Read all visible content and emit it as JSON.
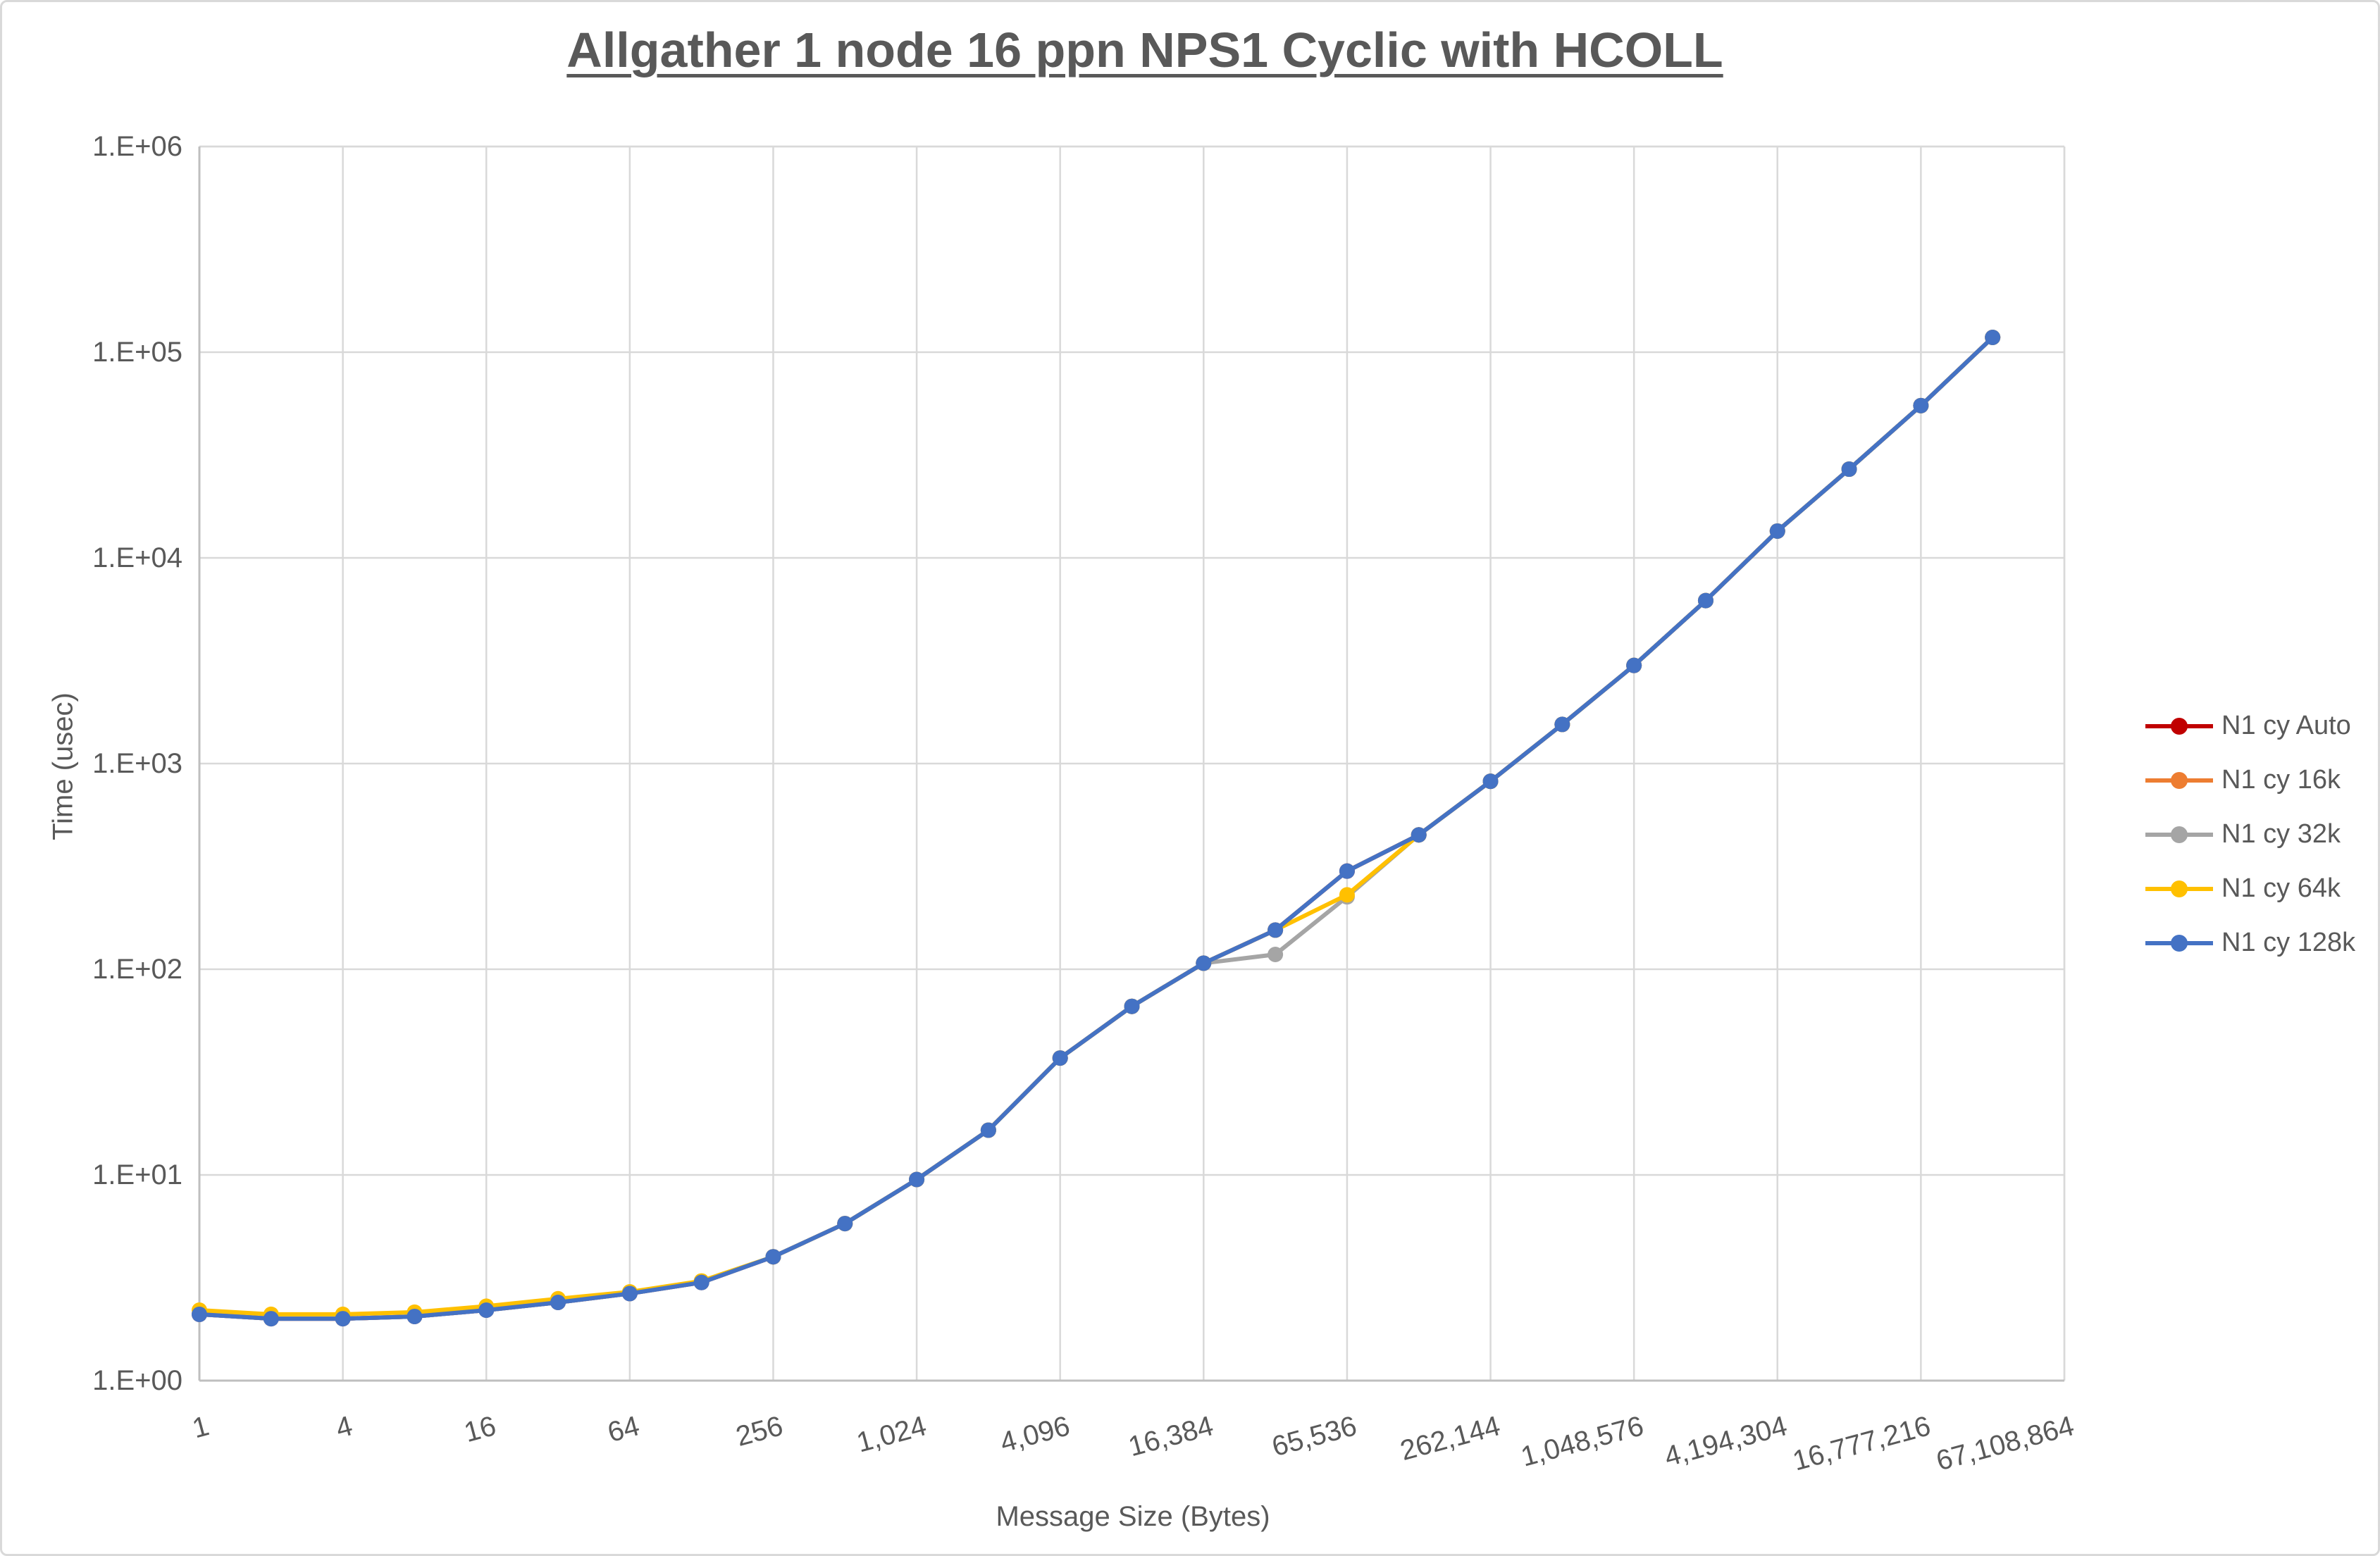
{
  "chart_data": {
    "type": "line",
    "title": "Allgather 1 node 16 ppn NPS1 Cyclic with HCOLL",
    "xlabel": "Message Size (Bytes)",
    "ylabel": "Time (usec)",
    "x_scale": "log2-categories",
    "y_scale": "log10",
    "ylim": [
      1,
      1000000
    ],
    "y_tick_labels": [
      "1.E+00",
      "1.E+01",
      "1.E+02",
      "1.E+03",
      "1.E+04",
      "1.E+05",
      "1.E+06"
    ],
    "x_tick_labels": [
      "1",
      "4",
      "16",
      "64",
      "256",
      "1,024",
      "4,096",
      "16,384",
      "65,536",
      "262,144",
      "1,048,576",
      "4,194,304",
      "16,777,216",
      "67,108,864"
    ],
    "x_sizes": [
      1,
      2,
      4,
      8,
      16,
      32,
      64,
      128,
      256,
      512,
      1024,
      2048,
      4096,
      8192,
      16384,
      32768,
      65536,
      131072,
      262144,
      524288,
      1048576,
      2097152,
      4194304,
      8388608,
      16777216,
      33554432
    ],
    "grid": true,
    "legend_position": "right",
    "colors": {
      "grid": "#D9D9D9",
      "axis": "#BFBFBF",
      "text": "#595959",
      "title": "#595959"
    },
    "series": [
      {
        "name": "N1 cy Auto",
        "color": "#C00000",
        "values": [
          2.1,
          2.0,
          2.0,
          2.05,
          2.2,
          2.4,
          2.65,
          3.0,
          4.0,
          5.8,
          9.5,
          16.5,
          37,
          66,
          107,
          155,
          300,
          450,
          820,
          1550,
          3000,
          6200,
          13500,
          27000,
          55000,
          118000
        ]
      },
      {
        "name": "N1 cy 16k",
        "color": "#ED7D31",
        "values": [
          2.1,
          2.0,
          2.0,
          2.05,
          2.2,
          2.4,
          2.65,
          3.0,
          4.0,
          5.8,
          9.5,
          16.5,
          37,
          66,
          107,
          155,
          300,
          450,
          820,
          1550,
          3000,
          6200,
          13500,
          27000,
          55000,
          118000
        ]
      },
      {
        "name": "N1 cy 32k",
        "color": "#A5A5A5",
        "values": [
          2.1,
          2.0,
          2.0,
          2.05,
          2.2,
          2.4,
          2.65,
          3.0,
          4.0,
          5.8,
          9.5,
          16.5,
          37,
          66,
          107,
          118,
          225,
          450,
          820,
          1550,
          3000,
          6200,
          13500,
          27000,
          55000,
          118000
        ]
      },
      {
        "name": "N1 cy 64k",
        "color": "#FFC000",
        "values": [
          2.2,
          2.1,
          2.1,
          2.15,
          2.3,
          2.5,
          2.7,
          3.05,
          4.0,
          5.8,
          9.5,
          16.5,
          37,
          66,
          107,
          155,
          230,
          450,
          820,
          1550,
          3000,
          6200,
          13500,
          27000,
          55000,
          118000
        ]
      },
      {
        "name": "N1 cy 128k",
        "color": "#4472C4",
        "values": [
          2.1,
          2.0,
          2.0,
          2.05,
          2.2,
          2.4,
          2.65,
          3.0,
          4.0,
          5.8,
          9.5,
          16.5,
          37,
          66,
          107,
          155,
          300,
          450,
          820,
          1550,
          3000,
          6200,
          13500,
          27000,
          55000,
          118000
        ]
      }
    ]
  }
}
